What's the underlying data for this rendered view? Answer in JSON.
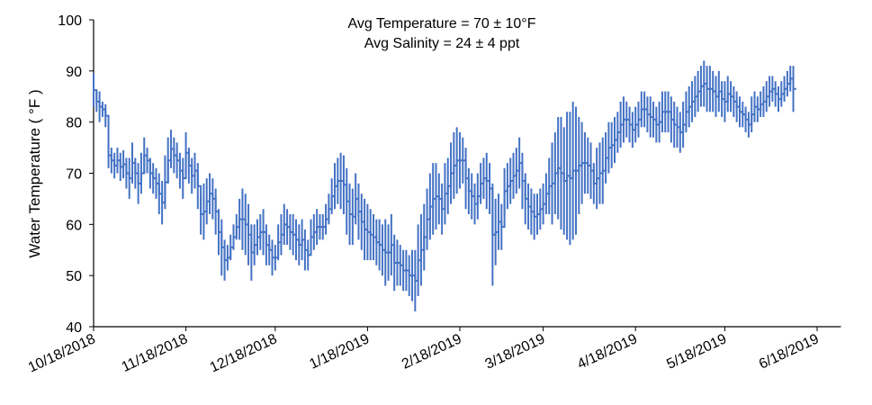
{
  "chart_data": {
    "type": "line",
    "style": "stepped daily high/low range",
    "title": "",
    "annotations": [
      "Avg Temperature = 70 ± 10°F",
      "Avg Salinity = 24 ± 4 ppt"
    ],
    "xlabel": "",
    "ylabel": "Water Temperature ( °F )",
    "ylim": [
      40,
      100
    ],
    "yticks": [
      40,
      50,
      60,
      70,
      80,
      90,
      100
    ],
    "x_start_date": "10/18/2018",
    "x_tick_labels": [
      "10/18/2018",
      "11/18/2018",
      "12/18/2018",
      "1/18/2019",
      "2/18/2019",
      "3/18/2019",
      "4/18/2019",
      "5/18/2019",
      "6/18/2019"
    ],
    "x_tick_day_offsets": [
      0,
      31,
      61,
      92,
      123,
      151,
      182,
      212,
      243
    ],
    "x_range_days": [
      0,
      251
    ],
    "grid": false,
    "legend": "none",
    "series_color": "#4472C4",
    "series": [
      {
        "name": "Water Temperature",
        "day_step": 1,
        "high": [
          89.5,
          86,
          86,
          84,
          83.5,
          76,
          75,
          74,
          75,
          74,
          74.5,
          73,
          73,
          76,
          73,
          72,
          74,
          77,
          75,
          73,
          72,
          71,
          70,
          68.5,
          73.5,
          77,
          78.5,
          77,
          76,
          74,
          73,
          78,
          75,
          73,
          74,
          72,
          66,
          68,
          69,
          70,
          69,
          67,
          63,
          61,
          57,
          56,
          58,
          60,
          62,
          65,
          67,
          66,
          64,
          60,
          60,
          61,
          62,
          63,
          60,
          58,
          57,
          56,
          60,
          62,
          64,
          63,
          62,
          62,
          61,
          60,
          61,
          59,
          57,
          61,
          62,
          63,
          62,
          62,
          64,
          66,
          69,
          72,
          73,
          74,
          73.5,
          71,
          68,
          67,
          70,
          68,
          66,
          65,
          64,
          63,
          62,
          61,
          61,
          60,
          61,
          60,
          62,
          58,
          57,
          56,
          55,
          55,
          54,
          55,
          55,
          60,
          62,
          64,
          67,
          70,
          72,
          72,
          70,
          68,
          72,
          73,
          76,
          78,
          79,
          78,
          77,
          75,
          71,
          70,
          68,
          70,
          72,
          73,
          74,
          72,
          68,
          65,
          66,
          64,
          71,
          72,
          73,
          74,
          75,
          77,
          74,
          70,
          68,
          67,
          66,
          66,
          67,
          68,
          70,
          73,
          76,
          78,
          81,
          81,
          79,
          82,
          82,
          84,
          83,
          81,
          80,
          78,
          77,
          76,
          72,
          75,
          76,
          77,
          78,
          80,
          80,
          81,
          82,
          84,
          85,
          84,
          83,
          82,
          83,
          84,
          86,
          86,
          85,
          85,
          84,
          83,
          84,
          86,
          86,
          86,
          85,
          84,
          83,
          82,
          84,
          86,
          87,
          88,
          89,
          90,
          91,
          92,
          91,
          91,
          90,
          89,
          90,
          88,
          88,
          89,
          88,
          87,
          86,
          85,
          84,
          83,
          82,
          85,
          86,
          85,
          86,
          87,
          88,
          89,
          89,
          88,
          87,
          88,
          89,
          90,
          91,
          91
        ],
        "low": [
          83,
          82,
          80,
          81,
          79,
          71,
          70,
          69,
          70,
          68.5,
          69,
          67,
          65,
          68,
          67,
          64,
          66,
          70,
          70,
          67,
          66,
          65,
          62,
          60,
          63,
          68,
          71,
          70,
          69,
          67,
          65,
          70,
          68,
          66,
          67,
          63,
          58,
          57,
          60,
          62,
          61,
          58,
          54,
          50,
          49,
          51,
          53,
          55,
          57,
          57,
          55,
          54,
          52,
          49,
          52,
          54,
          55,
          54,
          52,
          52,
          50,
          51,
          53,
          54,
          56,
          56,
          55,
          54,
          53,
          52,
          53,
          51,
          51,
          54,
          55,
          56,
          57,
          57,
          58,
          60,
          62,
          63,
          64,
          63,
          62,
          58,
          56,
          56,
          60,
          57,
          55,
          53,
          53,
          53,
          53,
          52,
          51,
          50,
          48,
          49,
          50,
          47,
          48,
          48,
          47,
          47,
          46,
          45,
          43,
          46,
          48,
          51,
          55,
          57,
          58,
          59,
          60,
          58,
          60,
          62,
          64,
          65,
          66,
          67,
          68,
          63,
          62,
          61,
          60,
          61,
          64,
          65,
          63,
          62,
          48,
          52,
          55,
          55,
          62,
          63,
          64,
          65,
          66,
          67,
          63,
          60,
          59,
          58,
          57,
          58,
          59,
          60,
          62,
          62,
          60,
          62,
          61,
          59,
          58,
          57,
          56,
          57,
          58,
          62,
          64,
          66,
          66,
          65,
          64,
          63,
          64,
          64,
          68,
          70,
          71,
          72,
          74,
          75,
          76,
          77,
          76,
          75,
          76,
          77,
          79,
          79,
          78,
          77,
          77,
          76,
          76,
          78,
          78,
          78,
          76,
          75,
          75,
          74,
          75,
          78,
          79,
          80,
          81,
          82,
          83,
          83,
          82,
          82,
          82,
          81,
          82,
          81,
          80,
          82,
          82,
          81,
          80,
          79,
          79,
          78,
          77,
          78,
          80,
          80,
          81,
          81,
          82,
          83,
          84,
          83,
          82,
          83,
          84,
          85,
          86,
          82
        ]
      }
    ]
  }
}
